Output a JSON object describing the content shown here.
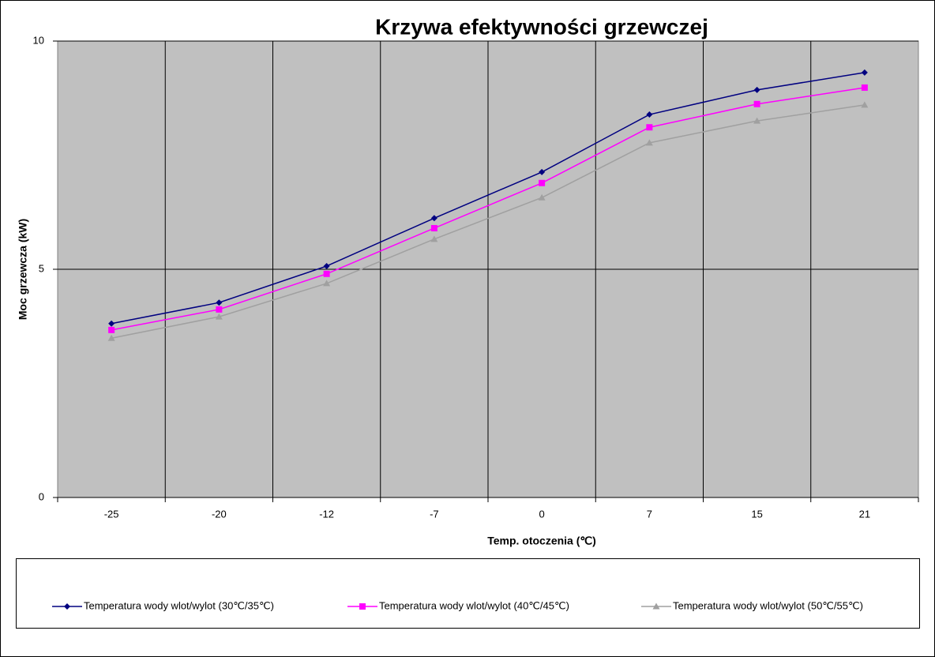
{
  "chart_data": {
    "type": "line",
    "title": "Krzywa efektywności grzewczej",
    "xlabel": "Temp. otoczenia (℃)",
    "ylabel": "Moc grzewcza (kW)",
    "categories": [
      "-25",
      "-20",
      "-12",
      "-7",
      "0",
      "7",
      "15",
      "21"
    ],
    "ylim": [
      0,
      10
    ],
    "yticks": [
      0,
      5,
      10
    ],
    "grid": true,
    "plot_background": "#c0c0c0",
    "legend": "bottom",
    "series": [
      {
        "name": "Temperatura wody wlot/wylot (30℃/35℃)",
        "color": "#000080",
        "marker": "diamond",
        "values": [
          3.81,
          4.27,
          5.07,
          6.12,
          7.13,
          8.39,
          8.93,
          9.31
        ]
      },
      {
        "name": "Temperatura wody wlot/wylot (40℃/45℃)",
        "color": "#ff00ff",
        "marker": "square",
        "values": [
          3.67,
          4.12,
          4.9,
          5.9,
          6.89,
          8.11,
          8.62,
          8.98
        ]
      },
      {
        "name": "Temperatura wody wlot/wylot (50℃/55℃)",
        "color": "#a0a0a0",
        "marker": "triangle",
        "values": [
          3.49,
          3.96,
          4.69,
          5.66,
          6.57,
          7.77,
          8.25,
          8.6
        ]
      }
    ]
  }
}
